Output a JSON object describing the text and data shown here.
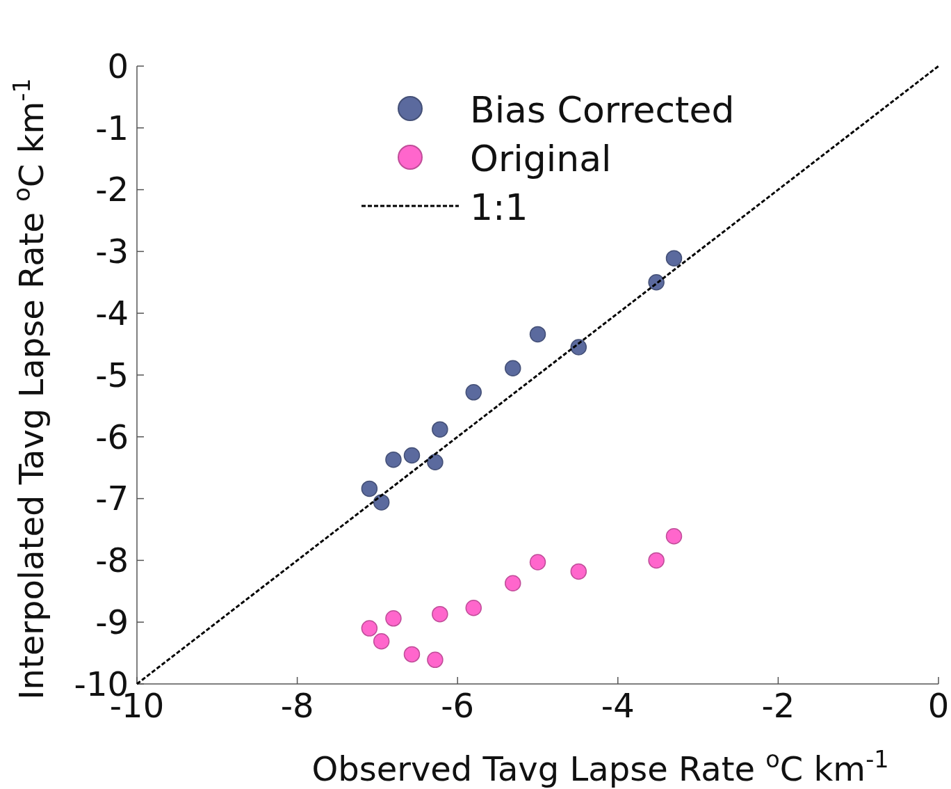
{
  "chart_data": {
    "type": "scatter",
    "xlabel": "Observed Tavg Lapse Rate $^{o}$C km$^{-1}$",
    "ylabel": "Interpolated Tavg Lapse Rate $^{o}$C km$^{-1}$",
    "xlim": [
      -10,
      0
    ],
    "ylim": [
      -10,
      0
    ],
    "xticks": [
      -10,
      -8,
      -6,
      -4,
      -2,
      0
    ],
    "yticks": [
      0,
      -1,
      -2,
      -3,
      -4,
      -5,
      -6,
      -7,
      -8,
      -9,
      -10
    ],
    "grid": false,
    "legend": "top",
    "marker": "circle",
    "series": [
      {
        "name": "Bias Corrected",
        "color": "#5b6a9e",
        "x": [
          -7.1,
          -6.95,
          -6.8,
          -6.57,
          -6.28,
          -6.22,
          -5.8,
          -5.31,
          -5.0,
          -4.49,
          -3.52,
          -3.3
        ],
        "values": [
          -6.84,
          -7.06,
          -6.37,
          -6.3,
          -6.41,
          -5.88,
          -5.28,
          -4.89,
          -4.34,
          -4.55,
          -3.5,
          -3.11
        ]
      },
      {
        "name": "Original",
        "color": "#ff66cc",
        "x": [
          -7.1,
          -6.95,
          -6.8,
          -6.57,
          -6.28,
          -6.22,
          -5.8,
          -5.31,
          -5.0,
          -4.49,
          -3.52,
          -3.3
        ],
        "values": [
          -9.1,
          -9.31,
          -8.94,
          -9.52,
          -9.61,
          -8.87,
          -8.77,
          -8.37,
          -8.03,
          -8.18,
          -8.0,
          -7.61
        ]
      },
      {
        "name": "1:1",
        "type": "line",
        "color": "#000000",
        "line_style": "dashed",
        "marker": "none",
        "x": [
          -10,
          0
        ],
        "values": [
          -10,
          0
        ]
      }
    ]
  }
}
